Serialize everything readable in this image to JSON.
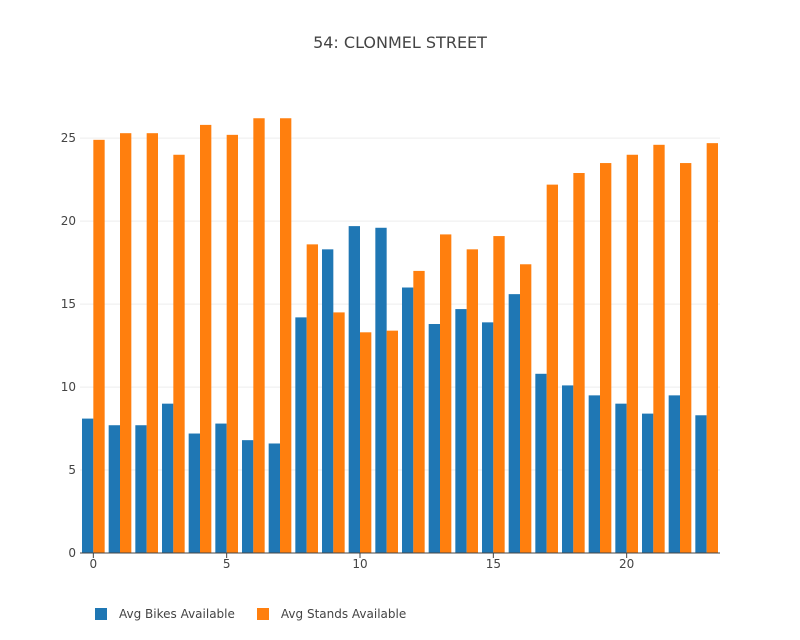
{
  "chart_data": {
    "type": "bar",
    "title": "54: CLONMEL STREET",
    "xlabel": "",
    "ylabel": "",
    "x": [
      0,
      1,
      2,
      3,
      4,
      5,
      6,
      7,
      8,
      9,
      10,
      11,
      12,
      13,
      14,
      15,
      16,
      17,
      18,
      19,
      20,
      21,
      22,
      23
    ],
    "xticks": [
      0,
      5,
      10,
      15,
      20
    ],
    "yticks": [
      0,
      5,
      10,
      15,
      20,
      25
    ],
    "ylim": [
      0,
      27.3
    ],
    "xlim": [
      -0.5,
      23.5
    ],
    "grid": true,
    "legend_position": "bottom-left",
    "series": [
      {
        "name": "Avg Bikes Available",
        "color": "#1f77b4",
        "values": [
          8.1,
          7.7,
          7.7,
          9.0,
          7.2,
          7.8,
          6.8,
          6.6,
          14.2,
          18.3,
          19.7,
          19.6,
          16.0,
          13.8,
          14.7,
          13.9,
          15.6,
          10.8,
          10.1,
          9.5,
          9.0,
          8.4,
          9.5,
          8.3
        ]
      },
      {
        "name": "Avg Stands Available",
        "color": "#ff7f0e",
        "values": [
          24.9,
          25.3,
          25.3,
          24.0,
          25.8,
          25.2,
          26.2,
          26.2,
          18.6,
          14.5,
          13.3,
          13.4,
          17.0,
          19.2,
          18.3,
          19.1,
          17.4,
          22.2,
          22.9,
          23.5,
          24.0,
          24.6,
          23.5,
          24.7
        ]
      }
    ]
  }
}
